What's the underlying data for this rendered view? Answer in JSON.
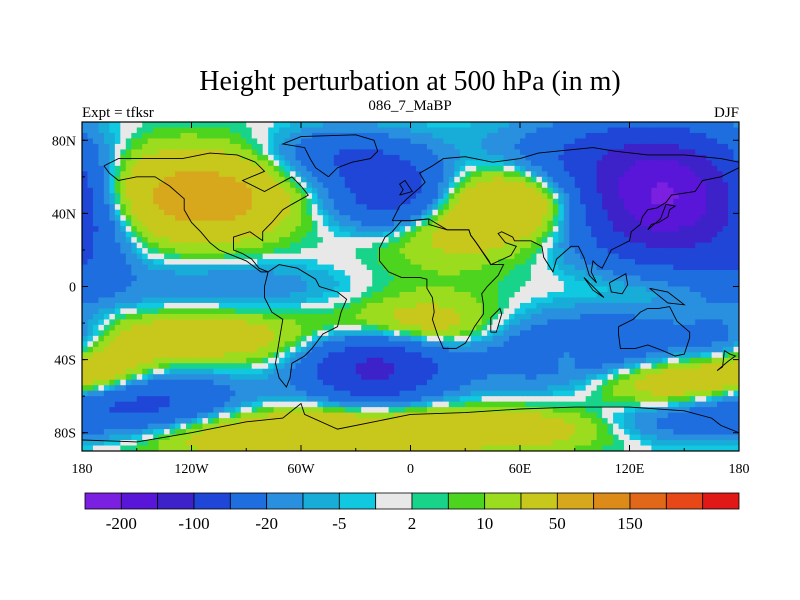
{
  "title": "Height perturbation at 500 hPa (in m)",
  "left_label": "Expt = tfksr",
  "center_label": "086_7_MaBP",
  "right_label": "DJF",
  "lat_ticks": [
    {
      "lat": 80,
      "label": "80N"
    },
    {
      "lat": 40,
      "label": "40N"
    },
    {
      "lat": 0,
      "label": "0"
    },
    {
      "lat": -40,
      "label": "40S"
    },
    {
      "lat": -80,
      "label": "80S"
    }
  ],
  "lon_ticks": [
    {
      "lon": -180,
      "label": "180"
    },
    {
      "lon": -120,
      "label": "120W"
    },
    {
      "lon": -60,
      "label": "60W"
    },
    {
      "lon": 0,
      "label": "0"
    },
    {
      "lon": 60,
      "label": "60E"
    },
    {
      "lon": 120,
      "label": "120E"
    },
    {
      "lon": 180,
      "label": "180"
    }
  ],
  "colorbar": {
    "colors": [
      "#7b1fe0",
      "#5a16d8",
      "#3c22c8",
      "#2046d8",
      "#1f6ee0",
      "#2890de",
      "#18acd8",
      "#10c8e0",
      "#e8e8e8",
      "#18d48a",
      "#4cd41e",
      "#9cdc1e",
      "#c8c81c",
      "#d8a81c",
      "#dc8a18",
      "#e06818",
      "#e84818",
      "#e01818"
    ],
    "tick_labels": [
      {
        "boundary": 1,
        "label": "-200"
      },
      {
        "boundary": 3,
        "label": "-100"
      },
      {
        "boundary": 5,
        "label": "-20"
      },
      {
        "boundary": 7,
        "label": "-5"
      },
      {
        "boundary": 9,
        "label": "2"
      },
      {
        "boundary": 11,
        "label": "10"
      },
      {
        "boundary": 13,
        "label": "50"
      },
      {
        "boundary": 15,
        "label": "150"
      }
    ]
  },
  "field_blobs": [
    {
      "lon": -140,
      "lat": 50,
      "amp": 52,
      "slon": 40,
      "slat": 18
    },
    {
      "lon": -100,
      "lat": 48,
      "amp": 35,
      "slon": 25,
      "slat": 15
    },
    {
      "lon": -175,
      "lat": 25,
      "amp": -20,
      "slon": 18,
      "slat": 18
    },
    {
      "lon": -10,
      "lat": 52,
      "amp": -85,
      "slon": 22,
      "slat": 14
    },
    {
      "lon": -40,
      "lat": 72,
      "amp": -40,
      "slon": 25,
      "slat": 10
    },
    {
      "lon": 60,
      "lat": 48,
      "amp": 55,
      "slon": 35,
      "slat": 14
    },
    {
      "lon": 20,
      "lat": 30,
      "amp": 25,
      "slon": 30,
      "slat": 12
    },
    {
      "lon": 140,
      "lat": 48,
      "amp": -210,
      "slon": 32,
      "slat": 22
    },
    {
      "lon": 95,
      "lat": 70,
      "amp": -40,
      "slon": 40,
      "slat": 14
    },
    {
      "lon": 175,
      "lat": 5,
      "amp": -15,
      "slon": 20,
      "slat": 12
    },
    {
      "lon": 130,
      "lat": 0,
      "amp": 12,
      "slon": 30,
      "slat": 8
    },
    {
      "lon": -100,
      "lat": 0,
      "amp": -18,
      "slon": 60,
      "slat": 10
    },
    {
      "lon": 5,
      "lat": -2,
      "amp": 10,
      "slon": 40,
      "slat": 14
    },
    {
      "lon": -120,
      "lat": -28,
      "amp": 40,
      "slon": 45,
      "slat": 10
    },
    {
      "lon": 10,
      "lat": -22,
      "amp": 35,
      "slon": 30,
      "slat": 10
    },
    {
      "lon": -20,
      "lat": -45,
      "amp": -110,
      "slon": 25,
      "slat": 12
    },
    {
      "lon": -150,
      "lat": -65,
      "amp": -70,
      "slon": 40,
      "slat": 12
    },
    {
      "lon": 100,
      "lat": -35,
      "amp": -45,
      "slon": 55,
      "slat": 15
    },
    {
      "lon": 85,
      "lat": -38,
      "amp": 20,
      "slon": 6,
      "slat": 5
    },
    {
      "lon": 150,
      "lat": -52,
      "amp": 60,
      "slon": 35,
      "slat": 10
    },
    {
      "lon": -90,
      "lat": -80,
      "amp": 45,
      "slon": 50,
      "slat": 10
    },
    {
      "lon": 30,
      "lat": -78,
      "amp": 45,
      "slon": 60,
      "slat": 8
    },
    {
      "lon": 140,
      "lat": -75,
      "amp": -25,
      "slon": 30,
      "slat": 8
    },
    {
      "lon": -170,
      "lat": -45,
      "amp": 35,
      "slon": 20,
      "slat": 10
    },
    {
      "lon": 175,
      "lat": -30,
      "amp": -25,
      "slon": 15,
      "slat": 10
    }
  ],
  "coastlines": [
    [
      [
        -168,
        66
      ],
      [
        -160,
        70
      ],
      [
        -140,
        70
      ],
      [
        -125,
        70
      ],
      [
        -110,
        73
      ],
      [
        -95,
        72
      ],
      [
        -85,
        68
      ],
      [
        -80,
        63
      ],
      [
        -92,
        58
      ],
      [
        -80,
        52
      ],
      [
        -65,
        60
      ],
      [
        -60,
        55
      ],
      [
        -56,
        50
      ],
      [
        -65,
        45
      ],
      [
        -70,
        42
      ],
      [
        -76,
        35
      ],
      [
        -81,
        30
      ],
      [
        -81,
        25
      ],
      [
        -88,
        30
      ],
      [
        -97,
        27
      ],
      [
        -97,
        20
      ],
      [
        -92,
        18
      ],
      [
        -87,
        15
      ],
      [
        -83,
        10
      ],
      [
        -78,
        8
      ],
      [
        -82,
        8
      ],
      [
        -90,
        14
      ],
      [
        -105,
        20
      ],
      [
        -110,
        24
      ],
      [
        -115,
        30
      ],
      [
        -120,
        35
      ],
      [
        -124,
        42
      ],
      [
        -124,
        48
      ],
      [
        -132,
        55
      ],
      [
        -140,
        60
      ],
      [
        -150,
        60
      ],
      [
        -160,
        58
      ],
      [
        -165,
        62
      ],
      [
        -168,
        66
      ]
    ],
    [
      [
        -78,
        8
      ],
      [
        -72,
        12
      ],
      [
        -62,
        10
      ],
      [
        -52,
        4
      ],
      [
        -50,
        0
      ],
      [
        -40,
        -3
      ],
      [
        -35,
        -7
      ],
      [
        -38,
        -14
      ],
      [
        -40,
        -22
      ],
      [
        -48,
        -26
      ],
      [
        -54,
        -34
      ],
      [
        -58,
        -38
      ],
      [
        -65,
        -42
      ],
      [
        -66,
        -50
      ],
      [
        -68,
        -55
      ],
      [
        -72,
        -50
      ],
      [
        -74,
        -42
      ],
      [
        -72,
        -30
      ],
      [
        -70,
        -18
      ],
      [
        -76,
        -14
      ],
      [
        -80,
        -6
      ],
      [
        -80,
        0
      ],
      [
        -78,
        8
      ]
    ],
    [
      [
        -10,
        36
      ],
      [
        -6,
        44
      ],
      [
        -2,
        48
      ],
      [
        5,
        54
      ],
      [
        8,
        57
      ],
      [
        5,
        62
      ],
      [
        12,
        66
      ],
      [
        18,
        70
      ],
      [
        30,
        71
      ],
      [
        45,
        68
      ],
      [
        60,
        70
      ],
      [
        70,
        73
      ],
      [
        80,
        74
      ],
      [
        100,
        76
      ],
      [
        112,
        74
      ],
      [
        130,
        72
      ],
      [
        150,
        72
      ],
      [
        170,
        70
      ],
      [
        180,
        68
      ]
    ],
    [
      [
        180,
        65
      ],
      [
        170,
        60
      ],
      [
        160,
        58
      ],
      [
        156,
        52
      ],
      [
        143,
        50
      ],
      [
        140,
        46
      ],
      [
        135,
        43
      ],
      [
        130,
        42
      ],
      [
        127,
        38
      ],
      [
        126,
        34
      ],
      [
        121,
        30
      ],
      [
        120,
        25
      ],
      [
        110,
        20
      ],
      [
        108,
        16
      ],
      [
        105,
        10
      ],
      [
        102,
        12
      ],
      [
        100,
        14
      ],
      [
        99,
        8
      ],
      [
        102,
        2
      ],
      [
        98,
        6
      ],
      [
        95,
        16
      ],
      [
        92,
        22
      ],
      [
        88,
        22
      ],
      [
        80,
        15
      ],
      [
        78,
        8
      ],
      [
        73,
        16
      ],
      [
        72,
        22
      ],
      [
        66,
        25
      ],
      [
        57,
        25
      ],
      [
        56,
        27
      ],
      [
        50,
        30
      ],
      [
        48,
        29
      ],
      [
        52,
        24
      ],
      [
        58,
        22
      ],
      [
        55,
        17
      ],
      [
        44,
        12
      ],
      [
        43,
        14
      ],
      [
        36,
        24
      ],
      [
        33,
        28
      ],
      [
        32,
        31
      ],
      [
        28,
        31
      ],
      [
        20,
        31
      ],
      [
        10,
        34
      ],
      [
        10,
        37
      ],
      [
        0,
        36
      ],
      [
        -5,
        36
      ],
      [
        -10,
        36
      ]
    ],
    [
      [
        -17,
        21
      ],
      [
        -17,
        14
      ],
      [
        -12,
        8
      ],
      [
        -5,
        5
      ],
      [
        5,
        5
      ],
      [
        9,
        4
      ],
      [
        9,
        -1
      ],
      [
        12,
        -6
      ],
      [
        13,
        -14
      ],
      [
        12,
        -18
      ],
      [
        15,
        -27
      ],
      [
        18,
        -34
      ],
      [
        25,
        -34
      ],
      [
        30,
        -31
      ],
      [
        33,
        -26
      ],
      [
        35,
        -22
      ],
      [
        40,
        -15
      ],
      [
        40,
        -10
      ],
      [
        39,
        -4
      ],
      [
        42,
        0
      ],
      [
        48,
        6
      ],
      [
        51,
        12
      ],
      [
        44,
        12
      ],
      [
        36,
        24
      ],
      [
        33,
        28
      ],
      [
        32,
        31
      ],
      [
        20,
        31
      ],
      [
        10,
        37
      ],
      [
        0,
        36
      ],
      [
        -5,
        36
      ],
      [
        -10,
        30
      ],
      [
        -14,
        27
      ],
      [
        -17,
        21
      ]
    ],
    [
      [
        114,
        -22
      ],
      [
        114,
        -26
      ],
      [
        115,
        -34
      ],
      [
        123,
        -34
      ],
      [
        130,
        -32
      ],
      [
        138,
        -35
      ],
      [
        145,
        -38
      ],
      [
        150,
        -37
      ],
      [
        153,
        -28
      ],
      [
        153,
        -25
      ],
      [
        146,
        -19
      ],
      [
        142,
        -11
      ],
      [
        136,
        -12
      ],
      [
        130,
        -12
      ],
      [
        126,
        -14
      ],
      [
        122,
        -18
      ],
      [
        114,
        -22
      ]
    ],
    [
      [
        -180,
        -84
      ],
      [
        -150,
        -85
      ],
      [
        -120,
        -80
      ],
      [
        -90,
        -74
      ],
      [
        -70,
        -72
      ],
      [
        -60,
        -64
      ],
      [
        -58,
        -70
      ],
      [
        -40,
        -78
      ],
      [
        -20,
        -74
      ],
      [
        0,
        -70
      ],
      [
        30,
        -69
      ],
      [
        60,
        -67
      ],
      [
        90,
        -66
      ],
      [
        120,
        -66
      ],
      [
        150,
        -68
      ],
      [
        165,
        -72
      ],
      [
        170,
        -76
      ],
      [
        180,
        -80
      ]
    ],
    [
      [
        -45,
        60
      ],
      [
        -52,
        65
      ],
      [
        -55,
        70
      ],
      [
        -58,
        76
      ],
      [
        -70,
        78
      ],
      [
        -60,
        82
      ],
      [
        -30,
        83
      ],
      [
        -20,
        80
      ],
      [
        -18,
        74
      ],
      [
        -22,
        70
      ],
      [
        -32,
        68
      ],
      [
        -40,
        65
      ],
      [
        -45,
        60
      ]
    ],
    [
      [
        -6,
        50
      ],
      [
        -4,
        53
      ],
      [
        -6,
        56
      ],
      [
        -3,
        58
      ],
      [
        1,
        52
      ],
      [
        -6,
        50
      ]
    ],
    [
      [
        130,
        31
      ],
      [
        132,
        34
      ],
      [
        136,
        35
      ],
      [
        141,
        38
      ],
      [
        142,
        42
      ],
      [
        145,
        44
      ],
      [
        140,
        45
      ],
      [
        137,
        37
      ],
      [
        130,
        31
      ]
    ],
    [
      [
        44,
        -25
      ],
      [
        47,
        -25
      ],
      [
        50,
        -15
      ],
      [
        49,
        -12
      ],
      [
        44,
        -17
      ],
      [
        44,
        -25
      ]
    ],
    [
      [
        95,
        5
      ],
      [
        106,
        -6
      ],
      [
        100,
        -2
      ],
      [
        95,
        5
      ]
    ],
    [
      [
        109,
        2
      ],
      [
        118,
        7
      ],
      [
        119,
        1
      ],
      [
        116,
        -4
      ],
      [
        110,
        -3
      ],
      [
        109,
        2
      ]
    ],
    [
      [
        131,
        -1
      ],
      [
        141,
        -3
      ],
      [
        150,
        -10
      ],
      [
        141,
        -9
      ],
      [
        131,
        -1
      ]
    ],
    [
      [
        172,
        -35
      ],
      [
        175,
        -37
      ],
      [
        178,
        -38
      ],
      [
        174,
        -41
      ],
      [
        168,
        -46
      ],
      [
        171,
        -44
      ],
      [
        172,
        -35
      ]
    ]
  ]
}
